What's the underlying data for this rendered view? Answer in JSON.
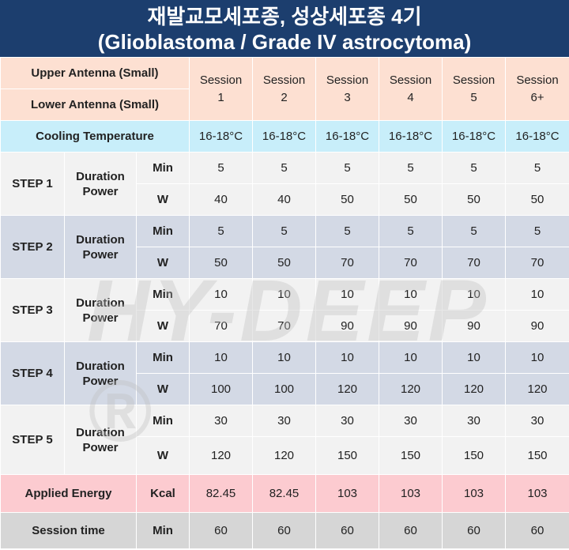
{
  "title": {
    "line1": "재발교모세포종, 성상세포종 4기",
    "line2": "(Glioblastoma / Grade IV astrocytoma)"
  },
  "antenna": {
    "upper": "Upper Antenna (Small)",
    "lower": "Lower Antenna (Small)"
  },
  "sessions": [
    {
      "label": "Session",
      "num": "1"
    },
    {
      "label": "Session",
      "num": "2"
    },
    {
      "label": "Session",
      "num": "3"
    },
    {
      "label": "Session",
      "num": "4"
    },
    {
      "label": "Session",
      "num": "5"
    },
    {
      "label": "Session",
      "num": "6+"
    }
  ],
  "cooling": {
    "label": "Cooling Temperature",
    "values": [
      "16-18°C",
      "16-18°C",
      "16-18°C",
      "16-18°C",
      "16-18°C",
      "16-18°C"
    ]
  },
  "steps": [
    {
      "label": "STEP 1",
      "param1": "Duration",
      "param2": "Power",
      "unit_min": "Min",
      "unit_w": "W",
      "min": [
        "5",
        "5",
        "5",
        "5",
        "5",
        "5"
      ],
      "w": [
        "40",
        "40",
        "50",
        "50",
        "50",
        "50"
      ]
    },
    {
      "label": "STEP 2",
      "param1": "Duration",
      "param2": "Power",
      "unit_min": "Min",
      "unit_w": "W",
      "min": [
        "5",
        "5",
        "5",
        "5",
        "5",
        "5"
      ],
      "w": [
        "50",
        "50",
        "70",
        "70",
        "70",
        "70"
      ]
    },
    {
      "label": "STEP 3",
      "param1": "Duration",
      "param2": "Power",
      "unit_min": "Min",
      "unit_w": "W",
      "min": [
        "10",
        "10",
        "10",
        "10",
        "10",
        "10"
      ],
      "w": [
        "70",
        "70",
        "90",
        "90",
        "90",
        "90"
      ]
    },
    {
      "label": "STEP 4",
      "param1": "Duration",
      "param2": "Power",
      "unit_min": "Min",
      "unit_w": "W",
      "min": [
        "10",
        "10",
        "10",
        "10",
        "10",
        "10"
      ],
      "w": [
        "100",
        "100",
        "120",
        "120",
        "120",
        "120"
      ]
    },
    {
      "label": "STEP 5",
      "param1": "Duration",
      "param2": "Power",
      "unit_min": "Min",
      "unit_w": "W",
      "min": [
        "30",
        "30",
        "30",
        "30",
        "30",
        "30"
      ],
      "w": [
        "120",
        "120",
        "150",
        "150",
        "150",
        "150"
      ]
    }
  ],
  "energy": {
    "label": "Applied Energy",
    "unit": "Kcal",
    "values": [
      "82.45",
      "82.45",
      "103",
      "103",
      "103",
      "103"
    ]
  },
  "session_time": {
    "label": "Session time",
    "unit": "Min",
    "values": [
      "60",
      "60",
      "60",
      "60",
      "60",
      "60"
    ]
  },
  "watermark": "HY-DEEP ®"
}
